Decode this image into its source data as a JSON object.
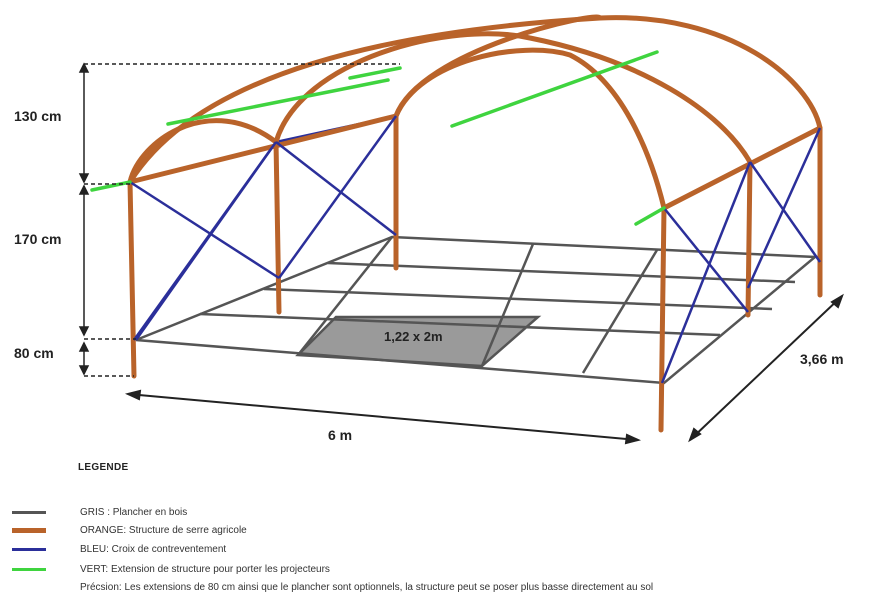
{
  "dimensions": {
    "arch_height": "130 cm",
    "wall_height": "170 cm",
    "extension_height": "80 cm",
    "length": "6 m",
    "width": "3,66 m",
    "tile_size": "1,22 x 2m"
  },
  "legend": {
    "title": "LEGENDE",
    "items": [
      {
        "color": "#555555",
        "text": "GRIS : Plancher en bois"
      },
      {
        "color": "#b9632a",
        "text": "ORANGE: Structure de serre agricole"
      },
      {
        "color": "#2b2f9a",
        "text": "BLEU: Croix de contreventement"
      },
      {
        "color": "#3fd43f",
        "text": "VERT: Extension de structure pour porter les projecteurs"
      }
    ],
    "note": "Précsion: Les extensions de 80 cm ainsi que  le plancher sont optionnels, la structure peut se poser plus basse directement au sol"
  },
  "colors": {
    "floor": "#555555",
    "structure": "#b9632a",
    "bracing": "#2b2f9a",
    "extension": "#3fd43f",
    "highlight_tile": "#9a9a9a"
  }
}
